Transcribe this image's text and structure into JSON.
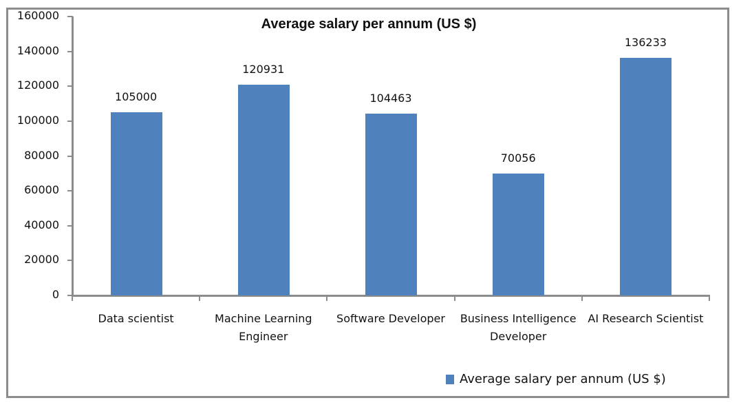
{
  "chart_data": {
    "type": "bar",
    "title": "Average salary per annum (US $)",
    "xlabel": "",
    "ylabel": "",
    "categories": [
      "Data scientist",
      "Machine Learning Engineer",
      "Software Developer",
      "Business Intelligence Developer",
      "AI Research Scientist"
    ],
    "category_lines": [
      [
        "Data scientist"
      ],
      [
        "Machine Learning",
        "Engineer"
      ],
      [
        "Software Developer"
      ],
      [
        "Business Intelligence",
        "Developer"
      ],
      [
        "AI Research Scientist"
      ]
    ],
    "series": [
      {
        "name": "Average salary per annum (US $)",
        "values": [
          105000,
          120931,
          104463,
          70056,
          136233
        ],
        "color": "#4f81bd"
      }
    ],
    "data_labels": [
      "105000",
      "120931",
      "104463",
      "70056",
      "136233"
    ],
    "ylim": [
      0,
      160000
    ],
    "yticks": [
      0,
      20000,
      40000,
      60000,
      80000,
      100000,
      120000,
      140000,
      160000
    ],
    "ytick_labels": [
      "0",
      "20000",
      "40000",
      "60000",
      "80000",
      "100000",
      "120000",
      "140000",
      "160000"
    ],
    "grid": false,
    "legend_position": "bottom-right"
  },
  "legend": {
    "label": "Average salary per annum (US $)"
  }
}
